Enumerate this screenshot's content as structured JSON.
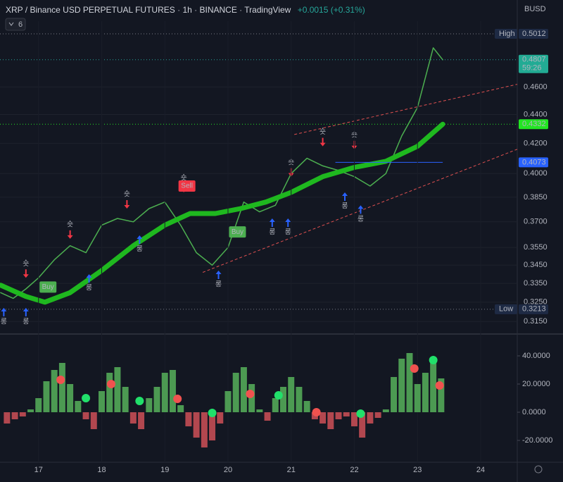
{
  "chart_data": [
    {
      "type": "line",
      "title": "XRP / Binance USD PERPETUAL FUTURES",
      "separator": "·",
      "interval": "1h",
      "exchange": "BINANCE",
      "source": "TradingView",
      "change": "+0.0015 (+0.31%)",
      "currency": "BUSD",
      "indicator_count": 6,
      "log_scale": true,
      "grid": true,
      "xlim": [
        16.39,
        24.58
      ],
      "ylim": [
        0.3101,
        0.5116
      ],
      "yticks": [
        {
          "value": 0.315,
          "label": "0.3150"
        },
        {
          "value": 0.325,
          "label": "0.3250"
        },
        {
          "value": 0.335,
          "label": "0.3350"
        },
        {
          "value": 0.345,
          "label": "0.3450"
        },
        {
          "value": 0.355,
          "label": "0.3550"
        },
        {
          "value": 0.37,
          "label": "0.3700"
        },
        {
          "value": 0.385,
          "label": "0.3850"
        },
        {
          "value": 0.4,
          "label": "0.4000"
        },
        {
          "value": 0.42,
          "label": "0.4200"
        },
        {
          "value": 0.44,
          "label": "0.4400"
        },
        {
          "value": 0.46,
          "label": "0.4600"
        }
      ],
      "series": [
        {
          "color": "#4caf50",
          "width": 1.5,
          "x": [
            16.4,
            16.6,
            16.8,
            17,
            17.25,
            17.5,
            17.75,
            18,
            18.25,
            18.5,
            18.75,
            19,
            19.25,
            19.5,
            19.75,
            20,
            20.25,
            20.5,
            20.75,
            21,
            21.25,
            21.5,
            21.75,
            22,
            22.25,
            22.5,
            22.75,
            23,
            23.25,
            23.4
          ],
          "values": [
            0.33,
            0.327,
            0.332,
            0.338,
            0.348,
            0.356,
            0.352,
            0.368,
            0.372,
            0.37,
            0.378,
            0.382,
            0.368,
            0.352,
            0.345,
            0.355,
            0.382,
            0.376,
            0.38,
            0.4,
            0.41,
            0.405,
            0.402,
            0.398,
            0.392,
            0.4,
            0.425,
            0.445,
            0.49,
            0.4807
          ]
        },
        {
          "color": "#1fb81f",
          "width": 7,
          "x": [
            16.4,
            16.8,
            17.1,
            17.5,
            18,
            18.5,
            19,
            19.4,
            19.8,
            20.2,
            20.6,
            21,
            21.5,
            22,
            22.5,
            23,
            23.4
          ],
          "values": [
            0.334,
            0.328,
            0.325,
            0.33,
            0.342,
            0.356,
            0.368,
            0.375,
            0.375,
            0.378,
            0.382,
            0.388,
            0.398,
            0.404,
            0.408,
            0.418,
            0.4332
          ]
        }
      ],
      "hlines": [
        {
          "value": 0.5012,
          "color": "#787b86",
          "box": "#1e2a44",
          "label": "High"
        },
        {
          "value": 0.4807,
          "color": "#26a69a",
          "box": "#22ab94",
          "extra": "59:26"
        },
        {
          "value": 0.4332,
          "color": "#22e622",
          "box": "#22e622"
        },
        {
          "value": 0.4073,
          "color": "#2962ff",
          "box": "#2962ff",
          "x": [
            21.7,
            23.4
          ]
        },
        {
          "value": 0.3213,
          "color": "#787b86",
          "box": "#1e2a44",
          "label": "Low"
        }
      ],
      "channel": {
        "color": "#e05050",
        "lines": [
          {
            "x": [
              21.05,
              24.58
            ],
            "values": [
              0.426,
              0.462
            ]
          },
          {
            "x": [
              19.6,
              24.58
            ],
            "values": [
              0.341,
              0.416
            ]
          }
        ]
      },
      "signals": {
        "long": {
          "label": "롱",
          "color": "#2962ff",
          "x": [
            16.45,
            16.8,
            17.8,
            18.6,
            19.85,
            20.7,
            20.95,
            21.85,
            22.1
          ],
          "values": [
            0.322,
            0.322,
            0.34,
            0.362,
            0.342,
            0.372,
            0.372,
            0.388,
            0.38
          ]
        },
        "short": {
          "label": "숏",
          "color": "#f23645",
          "x": [
            16.8,
            17.5,
            18.4,
            19.3,
            21.0,
            21.5,
            22.0
          ],
          "values": [
            0.338,
            0.36,
            0.378,
            0.388,
            0.398,
            0.418,
            0.416
          ]
        }
      },
      "badges": [
        {
          "text": "Buy",
          "color": "#4caf50",
          "x": 17.15,
          "value": 0.333
        },
        {
          "text": "Sell",
          "color": "#f23645",
          "x": 19.35,
          "value": 0.392
        },
        {
          "text": "Buy",
          "color": "#4caf50",
          "x": 20.15,
          "value": 0.364
        }
      ]
    },
    {
      "type": "bar",
      "xlim": [
        16.39,
        24.58
      ],
      "xticks": [
        17,
        18,
        19,
        20,
        21,
        22,
        23,
        24
      ],
      "ylim": [
        -35,
        53.5
      ],
      "yticks": [
        {
          "value": 40,
          "label": "40.0000"
        },
        {
          "value": 20,
          "label": "20.0000"
        },
        {
          "value": 0,
          "label": "0.0000"
        },
        {
          "value": -20,
          "label": "-20.0000"
        }
      ],
      "up_color": "#4c9a52",
      "down_color": "#b2474f",
      "x": [
        16.5,
        16.625,
        16.75,
        16.875,
        17,
        17.125,
        17.25,
        17.375,
        17.5,
        17.625,
        17.75,
        17.875,
        18,
        18.125,
        18.25,
        18.375,
        18.5,
        18.625,
        18.75,
        18.875,
        19,
        19.125,
        19.25,
        19.375,
        19.5,
        19.625,
        19.75,
        19.875,
        20,
        20.125,
        20.25,
        20.375,
        20.5,
        20.625,
        20.75,
        20.875,
        21,
        21.125,
        21.25,
        21.375,
        21.5,
        21.625,
        21.75,
        21.875,
        22,
        22.125,
        22.25,
        22.375,
        22.5,
        22.625,
        22.75,
        22.875,
        23,
        23.125,
        23.25,
        23.375
      ],
      "values": [
        -8,
        -5,
        -3,
        2,
        10,
        22,
        30,
        35,
        20,
        8,
        -5,
        -12,
        15,
        28,
        32,
        18,
        -8,
        -12,
        10,
        18,
        28,
        30,
        5,
        -10,
        -18,
        -25,
        -20,
        -8,
        15,
        28,
        32,
        20,
        2,
        -6,
        10,
        18,
        25,
        18,
        8,
        -5,
        -8,
        -12,
        -5,
        -3,
        -10,
        -18,
        -8,
        -4,
        2,
        25,
        38,
        42,
        20,
        28,
        38,
        24
      ],
      "markers": [
        {
          "color": "#f0524f",
          "x": [
            17.35,
            18.15,
            19.2,
            20.35,
            21.4,
            22.95,
            23.35
          ],
          "values": [
            23,
            20,
            9.5,
            13,
            0,
            31,
            19
          ]
        },
        {
          "color": "#21e06a",
          "x": [
            17.75,
            18.6,
            19.75,
            20.8,
            22.1,
            23.25
          ],
          "values": [
            10,
            8,
            -0.5,
            12,
            -1,
            37
          ]
        }
      ]
    }
  ]
}
